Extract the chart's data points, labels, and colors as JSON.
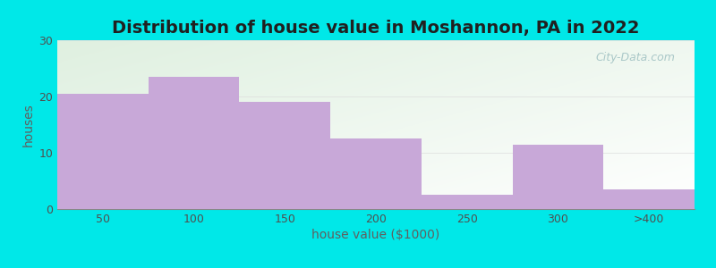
{
  "title": "Distribution of house value in Moshannon, PA in 2022",
  "xlabel": "house value ($1000)",
  "ylabel": "houses",
  "categories": [
    "50",
    "100",
    "150",
    "200",
    "250",
    "300",
    ">400"
  ],
  "values": [
    20.5,
    23.5,
    19.0,
    12.5,
    2.5,
    11.5,
    3.5
  ],
  "bar_color": "#c8a8d8",
  "bar_edge_color": "#c8a8d8",
  "ylim": [
    0,
    30
  ],
  "yticks": [
    0,
    10,
    20,
    30
  ],
  "background_outer": "#00e8e8",
  "background_plot_topleft": "#dff0e0",
  "background_plot_bottomright": "#ffffff",
  "title_fontsize": 14,
  "axis_label_fontsize": 10,
  "tick_fontsize": 9,
  "watermark_text": "City-Data.com",
  "watermark_color": "#aac8c8"
}
